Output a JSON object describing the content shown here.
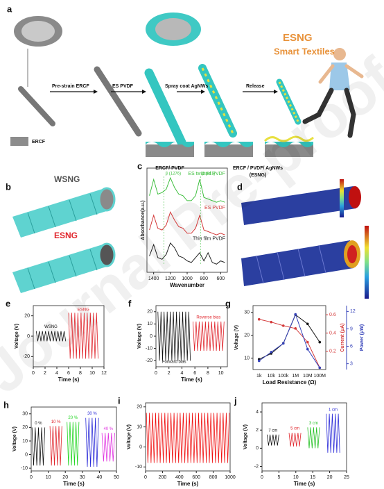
{
  "watermark": "Journal Pre-proof",
  "diagram": {
    "a": {
      "label": "a",
      "brand": "ESNG",
      "brand_sub": "Smart Textiles",
      "steps": [
        "Pre-strain ERCF",
        "ES PVDF",
        "Spray coat AgNWs",
        "Release"
      ],
      "legend": "ERCF",
      "layers": [
        "ERCF/ PVDF",
        "ERCF / PVDF/ AgNWs",
        "(ESNG)"
      ]
    },
    "b": {
      "label": "b",
      "top": "WSNG",
      "bottom": "ESNG"
    },
    "d": {
      "label": "d"
    }
  },
  "chart_data": [
    {
      "type": "line",
      "panel": "c",
      "xlabel": "Wavenumber",
      "ylabel": "Absorbance(a.u.)",
      "x": [
        1450,
        1400,
        1350,
        1300,
        1250,
        1200,
        1150,
        1100,
        1050,
        1000,
        950,
        900,
        850,
        800,
        750,
        700,
        650,
        600,
        550
      ],
      "xlim": [
        1480,
        520
      ],
      "xticks": [
        1400,
        1200,
        1000,
        800,
        600
      ],
      "ylim": [
        0,
        3.2
      ],
      "annotations": [
        "β (1276)",
        "β (841)"
      ],
      "series": [
        {
          "name": "ES twisted PVDF",
          "color": "#3fbf3f",
          "values": [
            2.35,
            2.85,
            2.4,
            2.45,
            2.55,
            2.9,
            2.6,
            2.4,
            2.35,
            2.2,
            2.2,
            2.35,
            2.85,
            2.3,
            2.25,
            2.2,
            2.15,
            2.2,
            2.15
          ]
        },
        {
          "name": "ES PVDF",
          "color": "#d43a3a",
          "values": [
            1.3,
            1.75,
            1.35,
            1.3,
            1.45,
            1.85,
            1.6,
            1.4,
            1.35,
            1.2,
            1.2,
            1.35,
            1.75,
            1.3,
            1.25,
            1.2,
            1.15,
            1.2,
            1.15
          ]
        },
        {
          "name": "Thin film PVDF",
          "color": "#222222",
          "values": [
            0.5,
            0.85,
            0.45,
            0.4,
            0.55,
            0.9,
            0.75,
            0.5,
            0.45,
            0.35,
            0.3,
            0.45,
            0.6,
            0.35,
            0.6,
            0.3,
            0.25,
            0.35,
            0.3
          ]
        }
      ]
    },
    {
      "type": "signal",
      "panel": "e",
      "xlabel": "Time (s)",
      "ylabel": "Voltage (V)",
      "xlim": [
        0,
        12
      ],
      "xticks": [
        0,
        2,
        4,
        6,
        8,
        10,
        12
      ],
      "ylim": [
        -30,
        30
      ],
      "yticks": [
        -20,
        0,
        20
      ],
      "series": [
        {
          "name": "WSNG",
          "color": "#111111",
          "x": [
            0.5,
            5.5
          ],
          "values": [
            5,
            -5
          ]
        },
        {
          "name": "ESNG",
          "color": "#e0242b",
          "x": [
            6,
            11
          ],
          "values": [
            23,
            -22
          ]
        }
      ]
    },
    {
      "type": "signal",
      "panel": "f",
      "xlabel": "Time (s)",
      "ylabel": "Voltage (V)",
      "xlim": [
        0,
        11
      ],
      "xticks": [
        0,
        2,
        4,
        6,
        8,
        10
      ],
      "ylim": [
        -25,
        25
      ],
      "yticks": [
        -20,
        -10,
        0,
        10,
        20
      ],
      "series": [
        {
          "name": "Forward bias",
          "color": "#111111",
          "x": [
            0.3,
            5.3
          ],
          "values": [
            20,
            -20
          ]
        },
        {
          "name": "Reverse bias",
          "color": "#e0242b",
          "x": [
            5.7,
            10.5
          ],
          "values": [
            12,
            -12
          ]
        }
      ]
    },
    {
      "type": "line",
      "panel": "g",
      "xlabel": "Load Resistance (Ω)",
      "ylabel": "Voltage (V)",
      "y2label": "Current (μA)",
      "y3label": "Power (μW)",
      "markers": true,
      "categories": [
        "1k",
        "10k",
        "100k",
        "1M",
        "10M",
        "100M"
      ],
      "ylim": [
        5,
        33
      ],
      "yticks": [
        10,
        20,
        30
      ],
      "y2lim": [
        0,
        0.7
      ],
      "y2ticks": [
        0.2,
        0.4,
        0.6
      ],
      "y3lim": [
        2,
        13
      ],
      "y3ticks": [
        3,
        6,
        9,
        12
      ],
      "series": [
        {
          "name": "Voltage",
          "color": "#111111",
          "values": [
            9.5,
            12,
            16.5,
            29,
            25,
            17
          ]
        },
        {
          "name": "Current",
          "color": "#d43a3a",
          "axis": "y2",
          "values": [
            0.55,
            0.52,
            0.48,
            0.45,
            0.3,
            0.02
          ]
        },
        {
          "name": "Power",
          "color": "#3340b8",
          "axis": "y3",
          "values": [
            3.5,
            5,
            6.5,
            11.5,
            5.5,
            2.3
          ]
        }
      ]
    },
    {
      "type": "signal",
      "panel": "h",
      "xlabel": "Time (s)",
      "ylabel": "Voltage (V)",
      "xlim": [
        0,
        50
      ],
      "xticks": [
        0,
        10,
        20,
        30,
        40,
        50
      ],
      "ylim": [
        -12,
        35
      ],
      "yticks": [
        -10,
        0,
        10,
        20,
        30
      ],
      "series": [
        {
          "name": "0 %",
          "color": "#111111",
          "x": [
            0.5,
            8
          ],
          "values": [
            20,
            -8
          ]
        },
        {
          "name": "10 %",
          "color": "#e0242b",
          "x": [
            11,
            18
          ],
          "values": [
            21,
            -8
          ]
        },
        {
          "name": "20 %",
          "color": "#22d622",
          "x": [
            21,
            28
          ],
          "values": [
            24,
            -8
          ]
        },
        {
          "name": "30 %",
          "color": "#2a2ad8",
          "x": [
            32,
            39.5
          ],
          "values": [
            27,
            -9
          ]
        },
        {
          "name": "40 %",
          "color": "#e030e0",
          "x": [
            41.5,
            49
          ],
          "values": [
            16,
            -5
          ]
        }
      ]
    },
    {
      "type": "signal",
      "panel": "i",
      "xlabel": "Time (s)",
      "ylabel": "Voltage (V)",
      "xlim": [
        0,
        1000
      ],
      "xticks": [
        0,
        200,
        400,
        600,
        800,
        1000
      ],
      "ylim": [
        -12,
        22
      ],
      "yticks": [
        -10,
        0,
        10,
        20
      ],
      "series": [
        {
          "color": "#f01010",
          "x": [
            10,
            990
          ],
          "values": [
            17,
            -8
          ]
        }
      ]
    },
    {
      "type": "signal",
      "panel": "j",
      "xlabel": "Time (s)",
      "ylabel": "Voltage (V)",
      "xlim": [
        0,
        25
      ],
      "xticks": [
        0,
        5,
        10,
        15,
        20,
        25
      ],
      "ylim": [
        -2.5,
        5
      ],
      "yticks": [
        -2,
        0,
        2,
        4
      ],
      "series": [
        {
          "name": "7 cm",
          "color": "#111111",
          "x": [
            1.5,
            5
          ],
          "values": [
            1.5,
            0.3
          ]
        },
        {
          "name": "5 cm",
          "color": "#e0242b",
          "x": [
            8,
            11.5
          ],
          "values": [
            1.7,
            0.2
          ]
        },
        {
          "name": "3 cm",
          "color": "#22c022",
          "x": [
            13.5,
            17
          ],
          "values": [
            2.3,
            0
          ]
        },
        {
          "name": "1 cm",
          "color": "#2a2ad8",
          "x": [
            19,
            23
          ],
          "values": [
            3.8,
            -0.5
          ]
        }
      ]
    }
  ]
}
